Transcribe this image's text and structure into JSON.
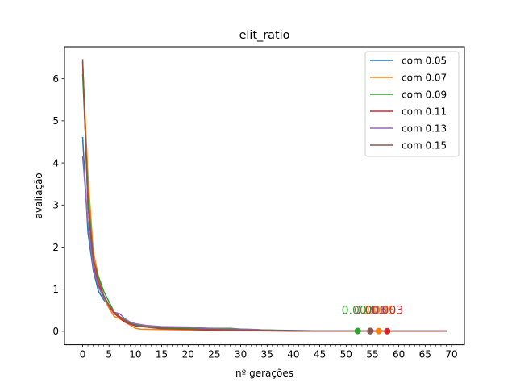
{
  "chart_data": {
    "type": "line",
    "title": "elit_ratio",
    "xlabel": "nº gerações",
    "ylabel": "avaliação",
    "xlim": [
      -3.45,
      72.45
    ],
    "ylim": [
      -0.32,
      6.76
    ],
    "x_ticks": [
      0,
      5,
      10,
      15,
      20,
      25,
      30,
      35,
      40,
      45,
      50,
      55,
      60,
      65,
      70
    ],
    "x_minor_step": 1,
    "y_ticks": [
      0,
      1,
      2,
      3,
      4,
      5,
      6
    ],
    "grid": false,
    "legend_position": "top-right",
    "series": [
      {
        "name": "com 0.05",
        "color": "#1f77b4",
        "x": [
          0,
          1,
          2,
          3,
          4,
          5,
          6,
          7,
          8,
          9,
          10,
          12,
          15,
          20,
          25,
          30,
          35,
          40,
          45,
          50,
          55,
          60,
          65,
          69
        ],
        "y": [
          4.6,
          2.35,
          1.45,
          0.95,
          0.75,
          0.6,
          0.45,
          0.35,
          0.25,
          0.2,
          0.16,
          0.12,
          0.09,
          0.06,
          0.05,
          0.04,
          0.03,
          0.02,
          0.01,
          0.01,
          0.005,
          0.004,
          0.003,
          0.003
        ],
        "final_point": {
          "x": 54.6,
          "y": 0.003
        },
        "final_label": "0.003"
      },
      {
        "name": "com 0.07",
        "color": "#ff7f0e",
        "x": [
          0,
          1,
          2,
          3,
          4,
          5,
          6,
          7,
          8,
          9,
          10,
          11,
          15,
          20,
          30,
          40,
          50,
          60,
          69
        ],
        "y": [
          6.35,
          3.7,
          1.9,
          1.3,
          0.8,
          0.55,
          0.35,
          0.3,
          0.22,
          0.15,
          0.07,
          0.05,
          0.04,
          0.03,
          0.02,
          0.01,
          0.008,
          0.006,
          0.005
        ],
        "final_point": {
          "x": 56.2,
          "y": 0.005
        },
        "final_label": "0.005"
      },
      {
        "name": "com 0.09",
        "color": "#2ca02c",
        "x": [
          0,
          1,
          2,
          3,
          4,
          5,
          6,
          7,
          8,
          9,
          10,
          12,
          15,
          20,
          25,
          28,
          30,
          35,
          40,
          45,
          50,
          55,
          60,
          69
        ],
        "y": [
          6.1,
          3.3,
          1.7,
          1.3,
          0.95,
          0.7,
          0.45,
          0.35,
          0.28,
          0.2,
          0.15,
          0.12,
          0.1,
          0.08,
          0.07,
          0.07,
          0.05,
          0.03,
          0.01,
          0.007,
          0.007,
          0.007,
          0.007,
          0.007
        ],
        "final_point": {
          "x": 52.2,
          "y": 0.007
        },
        "final_label": "0.007"
      },
      {
        "name": "com 0.11",
        "color": "#d62728",
        "x": [
          0,
          1,
          2,
          3,
          4,
          5,
          6,
          7,
          8,
          9,
          10,
          12,
          15,
          20,
          25,
          30,
          35,
          40,
          45,
          50,
          55,
          60,
          69
        ],
        "y": [
          6.4,
          3.0,
          1.6,
          1.1,
          0.85,
          0.6,
          0.42,
          0.32,
          0.22,
          0.17,
          0.13,
          0.1,
          0.06,
          0.05,
          0.02,
          0.02,
          0.01,
          0.004,
          0.003,
          0.003,
          0.003,
          0.003,
          0.003
        ],
        "final_point": {
          "x": 57.8,
          "y": 0.003
        },
        "final_label": "0.003"
      },
      {
        "name": "com 0.13",
        "color": "#9467bd",
        "x": [
          0,
          1,
          2,
          3,
          4,
          5,
          6,
          7,
          8,
          9,
          10,
          12,
          15,
          20,
          25,
          30,
          33,
          35,
          40,
          45,
          50,
          55,
          60,
          69
        ],
        "y": [
          4.15,
          2.6,
          1.5,
          1.05,
          0.8,
          0.62,
          0.45,
          0.42,
          0.3,
          0.22,
          0.18,
          0.14,
          0.11,
          0.1,
          0.06,
          0.05,
          0.04,
          0.02,
          0.009,
          0.009,
          0.009,
          0.009,
          0.009,
          0.009
        ],
        "final_point": {
          "x": 54.6,
          "y": 0.009
        },
        "final_label": "0.009"
      },
      {
        "name": "com 0.15",
        "color": "#8c564b",
        "x": [
          0,
          1,
          2,
          3,
          4,
          5,
          6,
          7,
          8,
          9,
          10,
          12,
          15,
          20,
          25,
          30,
          35,
          40,
          45,
          50,
          55,
          60,
          69
        ],
        "y": [
          6.45,
          3.0,
          1.75,
          1.2,
          0.85,
          0.62,
          0.45,
          0.35,
          0.25,
          0.18,
          0.14,
          0.1,
          0.07,
          0.05,
          0.04,
          0.03,
          0.02,
          0.01,
          0.006,
          0.006,
          0.006,
          0.006,
          0.006
        ],
        "final_point": {
          "x": 54.6,
          "y": 0.006
        },
        "final_label": "0.006"
      }
    ]
  }
}
